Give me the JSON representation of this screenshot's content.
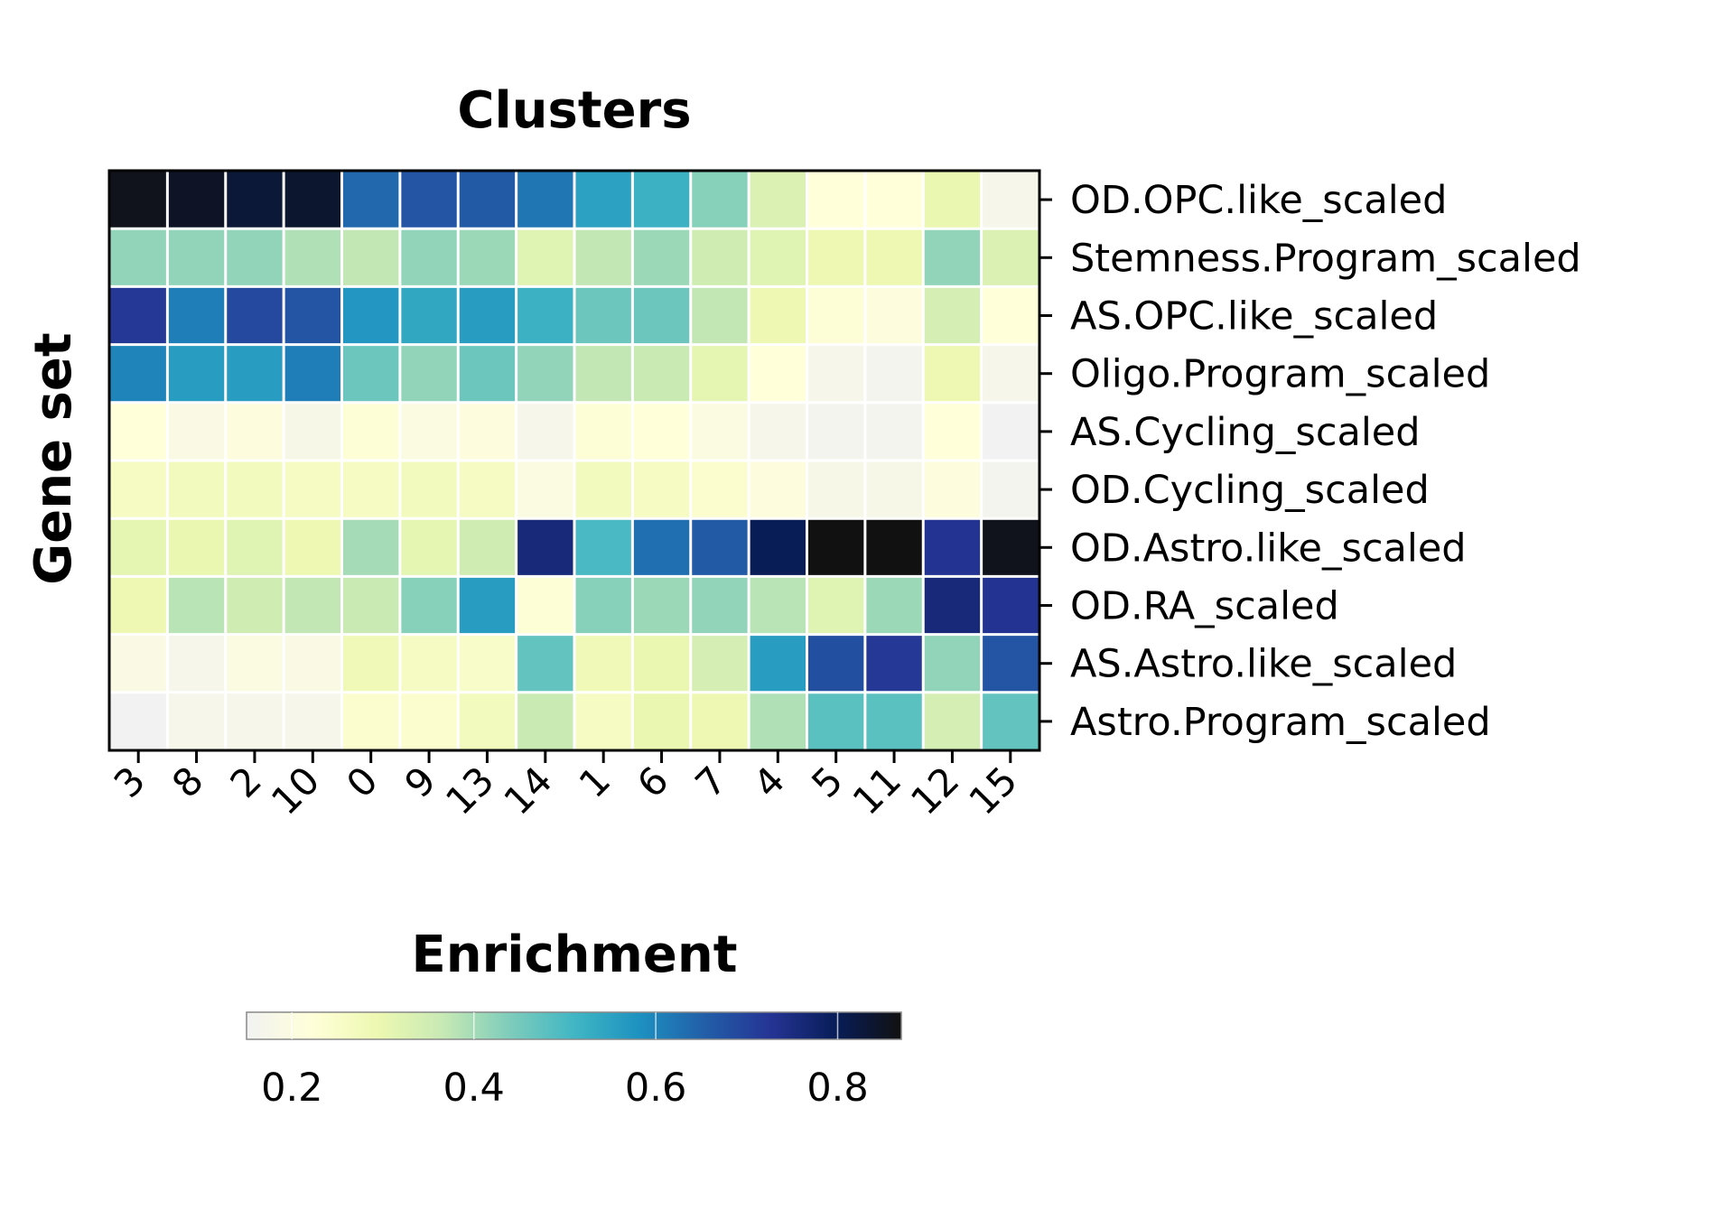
{
  "chart_data": {
    "type": "heatmap",
    "title": "Clusters",
    "xlabel": "",
    "ylabel": "Gene set",
    "colorbar": {
      "title": "Enrichment",
      "range": [
        0.15,
        0.87
      ],
      "ticks": [
        "0.2",
        "0.4",
        "0.6",
        "0.8"
      ],
      "tick_values": [
        0.2,
        0.4,
        0.6,
        0.8
      ],
      "colormap": "YlGnBu",
      "stops": [
        "#f2f2f2",
        "#ffffd9",
        "#edf8b1",
        "#c7e9b4",
        "#7fcdbb",
        "#41b6c4",
        "#1d91c0",
        "#225ea8",
        "#253494",
        "#081d58",
        "#111111"
      ]
    },
    "x_categories": [
      "3",
      "8",
      "2",
      "10",
      "0",
      "9",
      "13",
      "14",
      "1",
      "6",
      "7",
      "4",
      "5",
      "11",
      "12",
      "15"
    ],
    "y_categories": [
      "OD.OPC.like_scaled",
      "Stemness.Program_scaled",
      "AS.OPC.like_scaled",
      "Oligo.Program_scaled",
      "AS.Cycling_scaled",
      "OD.Cycling_scaled",
      "OD.Astro.like_scaled",
      "OD.RA_scaled",
      "AS.Astro.like_scaled",
      "Astro.Program_scaled"
    ],
    "values": [
      [
        0.86,
        0.85,
        0.83,
        0.84,
        0.64,
        0.67,
        0.66,
        0.62,
        0.55,
        0.52,
        0.43,
        0.33,
        0.22,
        0.22,
        0.3,
        0.17
      ],
      [
        0.42,
        0.42,
        0.42,
        0.39,
        0.37,
        0.42,
        0.41,
        0.32,
        0.37,
        0.41,
        0.35,
        0.32,
        0.29,
        0.29,
        0.42,
        0.33
      ],
      [
        0.72,
        0.61,
        0.69,
        0.67,
        0.57,
        0.54,
        0.56,
        0.52,
        0.46,
        0.46,
        0.37,
        0.29,
        0.23,
        0.21,
        0.34,
        0.22
      ],
      [
        0.6,
        0.56,
        0.56,
        0.61,
        0.46,
        0.42,
        0.46,
        0.42,
        0.37,
        0.36,
        0.31,
        0.22,
        0.17,
        0.16,
        0.29,
        0.17
      ],
      [
        0.22,
        0.19,
        0.21,
        0.18,
        0.23,
        0.2,
        0.21,
        0.17,
        0.23,
        0.22,
        0.2,
        0.17,
        0.16,
        0.16,
        0.22,
        0.15
      ],
      [
        0.26,
        0.27,
        0.27,
        0.26,
        0.26,
        0.27,
        0.26,
        0.2,
        0.27,
        0.26,
        0.24,
        0.21,
        0.18,
        0.18,
        0.21,
        0.16
      ],
      [
        0.31,
        0.3,
        0.32,
        0.29,
        0.4,
        0.31,
        0.35,
        0.76,
        0.5,
        0.63,
        0.66,
        0.8,
        0.87,
        0.87,
        0.73,
        0.86
      ],
      [
        0.29,
        0.38,
        0.35,
        0.37,
        0.36,
        0.43,
        0.56,
        0.23,
        0.43,
        0.41,
        0.42,
        0.38,
        0.32,
        0.41,
        0.76,
        0.73
      ],
      [
        0.19,
        0.17,
        0.2,
        0.19,
        0.28,
        0.26,
        0.25,
        0.47,
        0.28,
        0.3,
        0.34,
        0.56,
        0.68,
        0.72,
        0.42,
        0.67
      ],
      [
        0.15,
        0.17,
        0.17,
        0.17,
        0.24,
        0.24,
        0.27,
        0.36,
        0.26,
        0.3,
        0.29,
        0.39,
        0.48,
        0.48,
        0.34,
        0.47
      ]
    ]
  }
}
